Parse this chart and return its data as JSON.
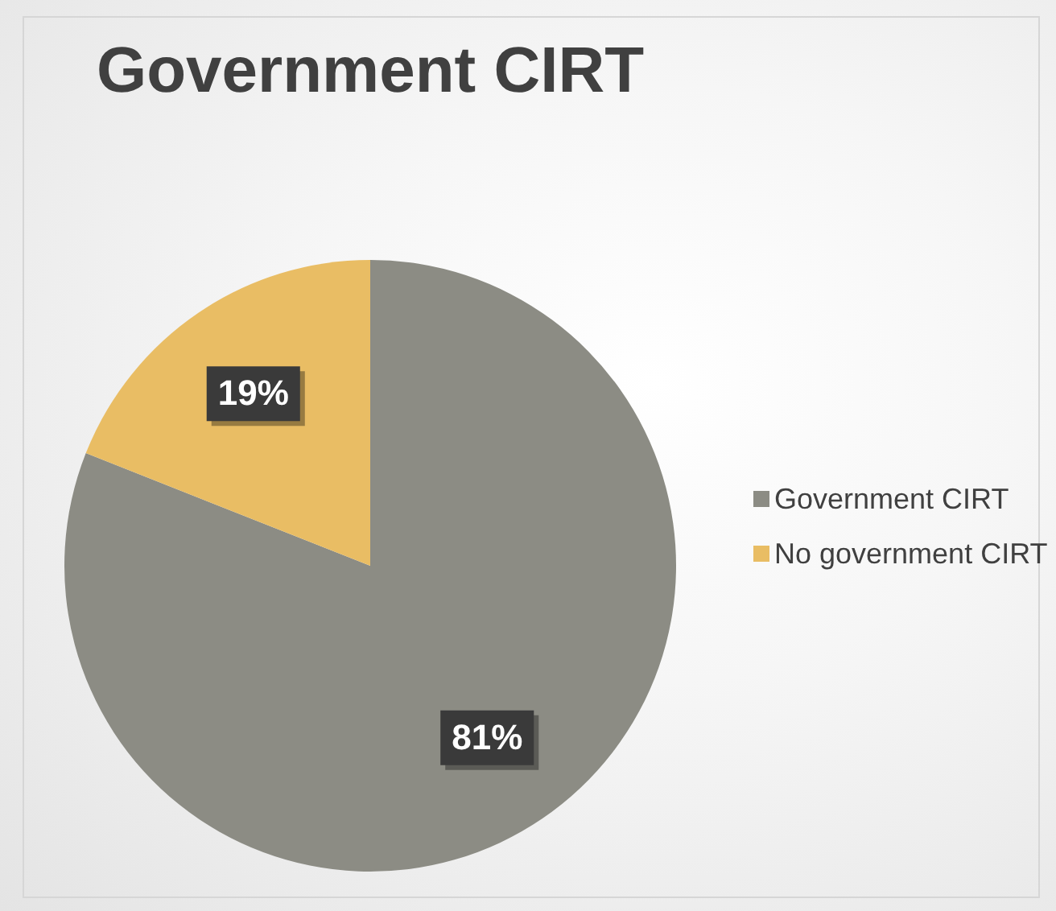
{
  "chart_data": {
    "type": "pie",
    "title": "Government CIRT",
    "categories": [
      "Government CIRT",
      "No government CIRT"
    ],
    "values": [
      81,
      19
    ],
    "colors": [
      "#8c8c84",
      "#e9bd64"
    ],
    "value_labels": [
      "81%",
      "19%"
    ],
    "legend": "right"
  }
}
